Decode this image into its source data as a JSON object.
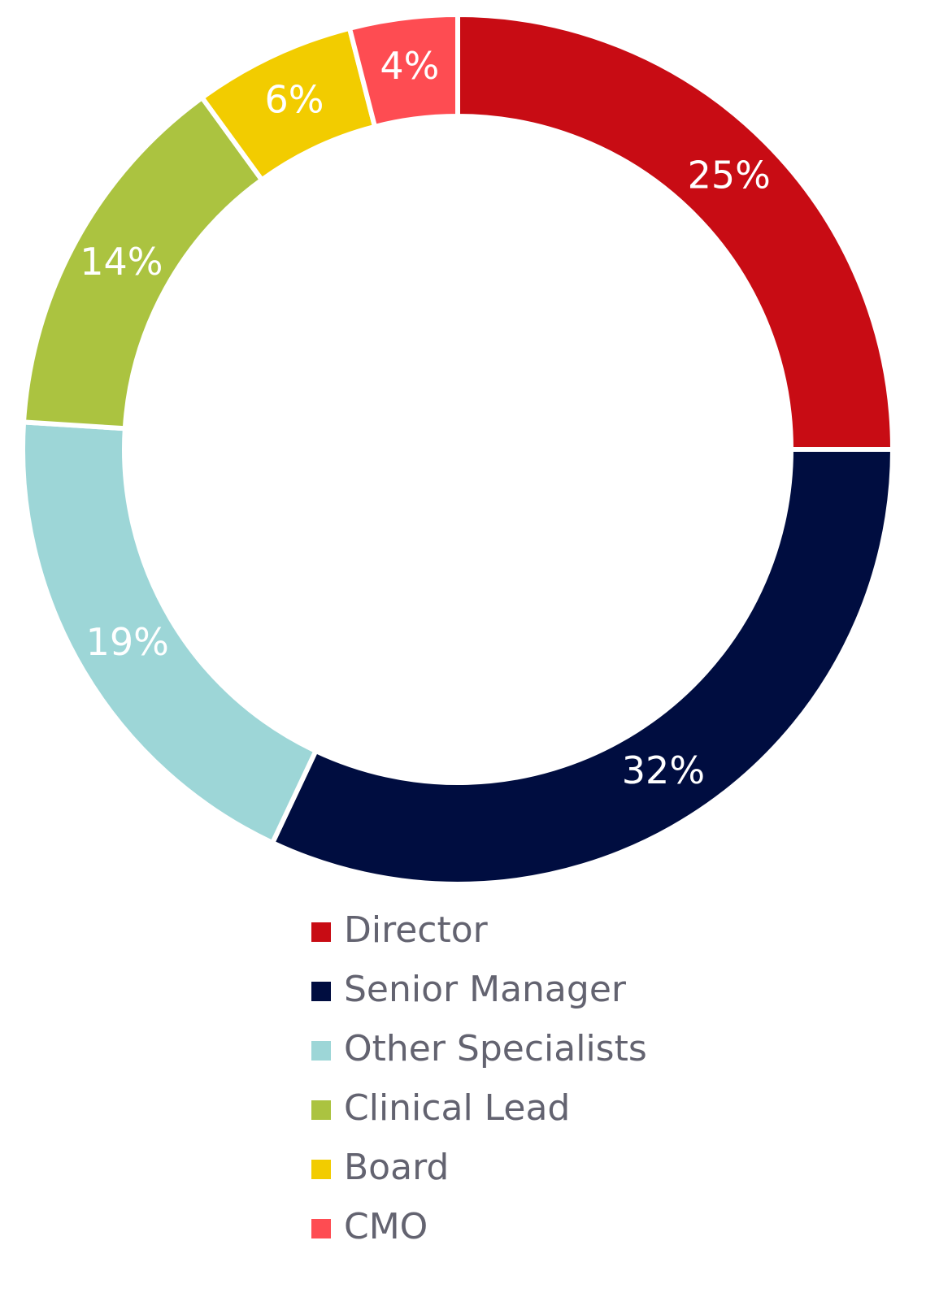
{
  "chart_data": {
    "type": "donut",
    "categories": [
      "Director",
      "Senior Manager",
      "Other Specialists",
      "Clinical Lead",
      "Board",
      "CMO"
    ],
    "values": [
      25,
      32,
      19,
      14,
      6,
      4
    ],
    "value_labels": [
      "25%",
      "32%",
      "19%",
      "14%",
      "6%",
      "4%"
    ],
    "colors": [
      "#c80c14",
      "#000d40",
      "#9dd6d7",
      "#abc340",
      "#f2cc00",
      "#fe4c52"
    ]
  }
}
